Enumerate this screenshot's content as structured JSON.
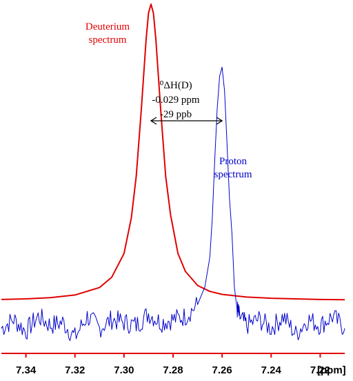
{
  "chart_data": {
    "type": "line",
    "x_unit": "[ppm]",
    "x_reversed": true,
    "xlim": [
      7.35,
      7.21
    ],
    "x_ticks": [
      "7.34",
      "7.32",
      "7.30",
      "7.28",
      "7.26",
      "7.24",
      "7.22"
    ],
    "grid": false,
    "series": [
      {
        "name": "Deuterium spectrum",
        "color": "#e00000",
        "peak_ppm": 7.289,
        "x": [
          7.35,
          7.34,
          7.33,
          7.32,
          7.31,
          7.305,
          7.3,
          7.297,
          7.295,
          7.293,
          7.291,
          7.29,
          7.289,
          7.288,
          7.287,
          7.285,
          7.283,
          7.281,
          7.278,
          7.275,
          7.27,
          7.265,
          7.26,
          7.25,
          7.24,
          7.23,
          7.22,
          7.21
        ],
        "values": [
          0.005,
          0.007,
          0.011,
          0.02,
          0.045,
          0.08,
          0.16,
          0.28,
          0.42,
          0.64,
          0.88,
          0.97,
          1.0,
          0.97,
          0.88,
          0.64,
          0.42,
          0.29,
          0.16,
          0.1,
          0.052,
          0.032,
          0.022,
          0.013,
          0.009,
          0.007,
          0.005,
          0.004
        ]
      },
      {
        "name": "Proton spectrum",
        "color": "#0000cc",
        "peak_ppm": 7.26,
        "x": [
          7.35,
          7.345,
          7.34,
          7.335,
          7.33,
          7.325,
          7.32,
          7.315,
          7.31,
          7.305,
          7.3,
          7.295,
          7.29,
          7.285,
          7.28,
          7.275,
          7.27,
          7.267,
          7.265,
          7.264,
          7.263,
          7.262,
          7.261,
          7.26,
          7.259,
          7.258,
          7.257,
          7.256,
          7.255,
          7.254,
          7.253,
          7.25,
          7.245,
          7.24,
          7.235,
          7.23,
          7.225,
          7.22,
          7.215,
          7.21
        ],
        "values": [
          -0.02,
          0.01,
          -0.03,
          0.02,
          -0.01,
          0.0,
          -0.05,
          0.02,
          -0.02,
          0.01,
          0.0,
          -0.01,
          0.03,
          0.0,
          0.01,
          0.02,
          0.06,
          0.12,
          0.22,
          0.35,
          0.55,
          0.72,
          0.83,
          0.86,
          0.78,
          0.6,
          0.42,
          0.3,
          0.12,
          0.05,
          0.02,
          -0.01,
          0.01,
          -0.02,
          0.02,
          -0.04,
          0.01,
          -0.01,
          0.02,
          -0.02
        ]
      }
    ],
    "annotation": {
      "lines": [
        "⁰ΔH(D)",
        "-0.029 ppm",
        "-29 ppb"
      ],
      "from_ppm": 7.289,
      "to_ppm": 7.26
    },
    "series_labels": {
      "deuterium": [
        "Deuterium",
        "spectrum"
      ],
      "proton": [
        "Proton",
        "spectrum"
      ]
    }
  }
}
